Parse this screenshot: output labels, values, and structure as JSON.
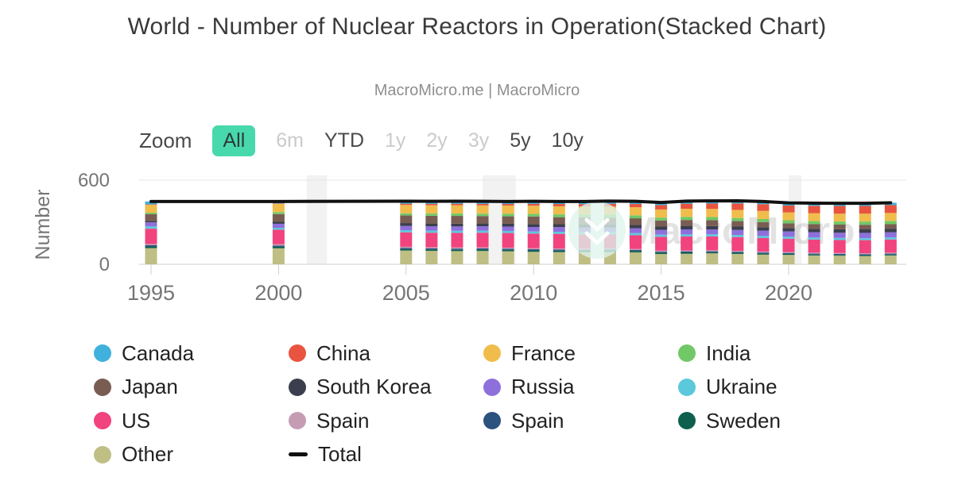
{
  "header": {
    "title": "World - Number of Nuclear Reactors in Operation(Stacked Chart)",
    "subtitle": "MacroMicro.me | MacroMicro"
  },
  "toolbar": {
    "zoom_label": "Zoom",
    "selected_bg": "#47d8ab",
    "buttons": [
      {
        "label": "All",
        "state": "selected"
      },
      {
        "label": "6m",
        "state": "disabled"
      },
      {
        "label": "YTD",
        "state": "normal"
      },
      {
        "label": "1y",
        "state": "disabled"
      },
      {
        "label": "2y",
        "state": "disabled"
      },
      {
        "label": "3y",
        "state": "disabled"
      },
      {
        "label": "5y",
        "state": "normal"
      },
      {
        "label": "10y",
        "state": "normal"
      }
    ]
  },
  "watermark": {
    "text": "MacroMicro",
    "logo": "macromicro-logo",
    "circle_color": "#dff4ec"
  },
  "chart_data": {
    "type": "bar",
    "variant": "stacked-column-with-total-line",
    "title": "World - Number of Nuclear Reactors in Operation(Stacked Chart)",
    "subtitle": "MacroMicro.me | MacroMicro",
    "xlabel": "",
    "ylabel": "Number",
    "ylim": [
      0,
      600
    ],
    "yticks": [
      0,
      600
    ],
    "xticks": [
      1995,
      2000,
      2005,
      2010,
      2015,
      2020
    ],
    "grid": "horizontal-only",
    "legend_position": "bottom",
    "stack_order": "reverse-of-legend (Other at bottom, Canada at top)",
    "recession_bands": [
      [
        2001.1,
        2001.9
      ],
      [
        2008.0,
        2009.3
      ],
      [
        2020.0,
        2020.5
      ]
    ],
    "x": [
      1995,
      2000,
      2005,
      2006,
      2007,
      2008,
      2009,
      2010,
      2011,
      2012,
      2013,
      2014,
      2015,
      2016,
      2017,
      2018,
      2019,
      2020,
      2021,
      2022,
      2023,
      2024
    ],
    "series": [
      {
        "name": "Canada",
        "color": "#3fb1dc",
        "values": [
          21,
          14,
          18,
          18,
          18,
          18,
          18,
          18,
          18,
          19,
          19,
          19,
          19,
          19,
          19,
          19,
          19,
          19,
          19,
          19,
          19,
          17
        ]
      },
      {
        "name": "China",
        "color": "#e8543f",
        "values": [
          3,
          3,
          9,
          10,
          11,
          11,
          11,
          13,
          16,
          16,
          20,
          23,
          31,
          36,
          38,
          46,
          48,
          49,
          53,
          55,
          55,
          56
        ]
      },
      {
        "name": "France",
        "color": "#f0bc4c",
        "values": [
          56,
          59,
          59,
          59,
          59,
          59,
          59,
          58,
          58,
          58,
          58,
          58,
          58,
          58,
          58,
          58,
          58,
          56,
          56,
          56,
          56,
          57
        ]
      },
      {
        "name": "India",
        "color": "#71c867",
        "values": [
          10,
          14,
          15,
          16,
          17,
          17,
          18,
          19,
          20,
          20,
          21,
          21,
          21,
          22,
          22,
          22,
          22,
          22,
          22,
          22,
          23,
          23
        ]
      },
      {
        "name": "Japan",
        "color": "#7a5d52",
        "values": [
          49,
          53,
          55,
          55,
          55,
          53,
          53,
          54,
          50,
          50,
          48,
          48,
          43,
          42,
          42,
          39,
          37,
          33,
          33,
          33,
          33,
          32
        ]
      },
      {
        "name": "South Korea",
        "color": "#3a3f4d",
        "values": [
          10,
          16,
          20,
          20,
          20,
          20,
          20,
          21,
          21,
          23,
          23,
          23,
          24,
          25,
          24,
          24,
          24,
          24,
          24,
          25,
          25,
          26
        ]
      },
      {
        "name": "Russia",
        "color": "#8e70dc",
        "values": [
          29,
          29,
          31,
          31,
          31,
          31,
          31,
          32,
          33,
          33,
          33,
          34,
          34,
          36,
          35,
          36,
          38,
          38,
          38,
          37,
          37,
          36
        ]
      },
      {
        "name": "Ukraine",
        "color": "#5bc8dc",
        "values": [
          16,
          13,
          15,
          15,
          15,
          15,
          15,
          15,
          15,
          15,
          15,
          15,
          15,
          15,
          15,
          15,
          15,
          15,
          15,
          15,
          15,
          15
        ]
      },
      {
        "name": "US",
        "color": "#f1437e",
        "values": [
          109,
          104,
          103,
          103,
          104,
          104,
          104,
          104,
          104,
          102,
          100,
          99,
          99,
          99,
          99,
          98,
          96,
          94,
          93,
          92,
          93,
          94
        ]
      },
      {
        "name": "Spain",
        "color": "#c69cb4",
        "values": [
          9,
          9,
          9,
          8,
          8,
          8,
          8,
          8,
          8,
          8,
          8,
          7,
          7,
          7,
          7,
          7,
          7,
          7,
          7,
          7,
          7,
          7
        ]
      },
      {
        "name": "Spain",
        "color": "#2c527e",
        "values": [
          9,
          9,
          8,
          8,
          8,
          8,
          8,
          8,
          8,
          8,
          8,
          7,
          7,
          7,
          7,
          7,
          7,
          7,
          7,
          7,
          7,
          7
        ]
      },
      {
        "name": "Sweden",
        "color": "#0e5f4e",
        "values": [
          12,
          11,
          10,
          10,
          10,
          10,
          10,
          10,
          10,
          10,
          10,
          10,
          10,
          10,
          8,
          8,
          8,
          7,
          6,
          6,
          6,
          6
        ]
      },
      {
        "name": "Other",
        "color": "#bfbe85",
        "values": [
          115,
          114,
          98,
          96,
          94,
          95,
          93,
          89,
          87,
          86,
          88,
          85,
          73,
          75,
          78,
          74,
          69,
          67,
          63,
          61,
          59,
          63
        ]
      }
    ],
    "total": {
      "name": "Total",
      "color": "#111111",
      "values": [
        448,
        448,
        450,
        449,
        450,
        449,
        448,
        449,
        448,
        448,
        451,
        449,
        441,
        451,
        452,
        453,
        448,
        438,
        436,
        435,
        435,
        439
      ]
    }
  }
}
